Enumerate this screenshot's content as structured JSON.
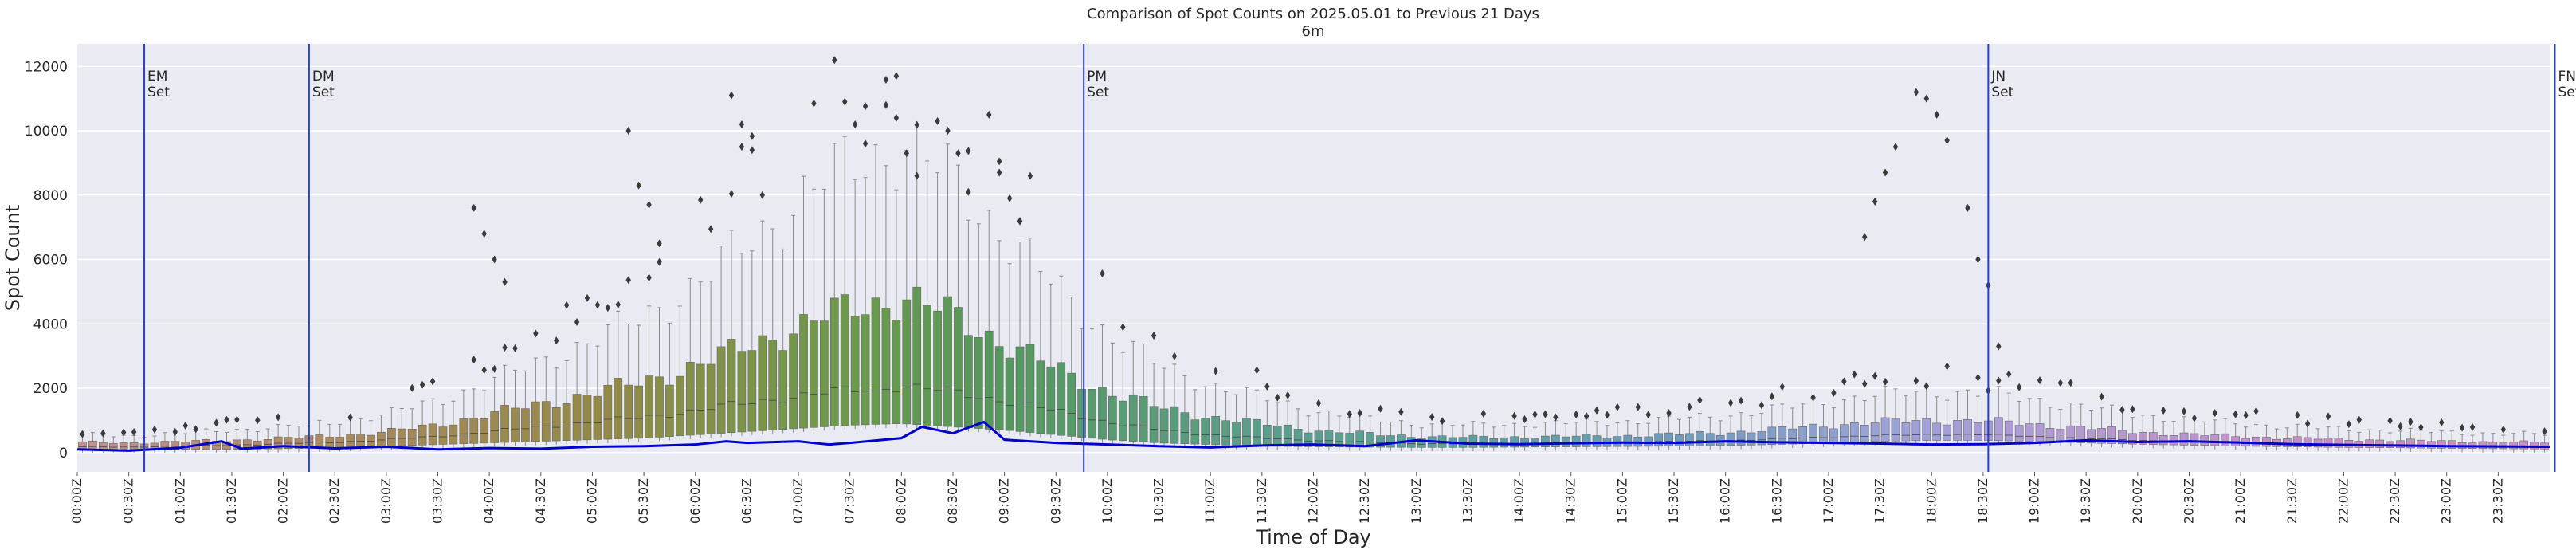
{
  "chart_data": {
    "type": "box",
    "title": "Comparison of Spot Counts on 2025.05.01 to Previous 21 Days",
    "subtitle": "6m",
    "xlabel": "Time of Day",
    "ylabel": "Spot Count",
    "ylim": [
      -600,
      12700
    ],
    "yticks": [
      0,
      2000,
      4000,
      6000,
      8000,
      10000,
      12000
    ],
    "grid": true,
    "xtick_labels": [
      "00:00Z",
      "00:30Z",
      "01:00Z",
      "01:30Z",
      "02:00Z",
      "02:30Z",
      "03:00Z",
      "03:30Z",
      "04:00Z",
      "04:30Z",
      "05:00Z",
      "05:30Z",
      "06:00Z",
      "06:30Z",
      "07:00Z",
      "07:30Z",
      "08:00Z",
      "08:30Z",
      "09:00Z",
      "09:30Z",
      "10:00Z",
      "10:30Z",
      "11:00Z",
      "11:30Z",
      "12:00Z",
      "12:30Z",
      "13:00Z",
      "13:30Z",
      "14:00Z",
      "14:30Z",
      "15:00Z",
      "15:30Z",
      "16:00Z",
      "16:30Z",
      "17:00Z",
      "17:30Z",
      "18:00Z",
      "18:30Z",
      "19:00Z",
      "19:30Z",
      "20:00Z",
      "20:30Z",
      "21:00Z",
      "21:30Z",
      "22:00Z",
      "22:30Z",
      "23:00Z",
      "23:30Z"
    ],
    "bins_per_day": 240,
    "median_profile": {
      "time_hours": [
        0,
        0.5,
        1,
        1.5,
        2,
        2.5,
        3,
        3.5,
        4,
        4.5,
        5,
        5.5,
        6,
        6.5,
        7,
        7.5,
        8,
        8.5,
        9,
        9.5,
        10,
        10.5,
        11,
        11.5,
        12,
        12.5,
        13,
        13.5,
        14,
        14.5,
        15,
        15.5,
        16,
        16.5,
        17,
        17.5,
        18,
        18.5,
        19,
        19.5,
        20,
        20.5,
        21,
        21.5,
        22,
        22.5,
        23,
        23.5,
        24
      ],
      "q1": [
        100,
        100,
        100,
        100,
        120,
        150,
        200,
        250,
        300,
        350,
        400,
        450,
        550,
        650,
        750,
        850,
        900,
        800,
        700,
        550,
        400,
        300,
        250,
        200,
        180,
        170,
        160,
        160,
        170,
        180,
        190,
        200,
        220,
        250,
        300,
        350,
        380,
        380,
        350,
        300,
        260,
        230,
        200,
        180,
        160,
        150,
        130,
        120,
        110
      ],
      "median": [
        180,
        170,
        200,
        230,
        280,
        320,
        400,
        500,
        650,
        800,
        950,
        1100,
        1300,
        1550,
        1750,
        1950,
        2050,
        1900,
        1600,
        1300,
        950,
        700,
        550,
        450,
        380,
        320,
        280,
        270,
        280,
        300,
        320,
        340,
        370,
        420,
        480,
        530,
        560,
        560,
        500,
        440,
        380,
        330,
        290,
        260,
        240,
        220,
        200,
        180,
        170
      ],
      "q3": [
        320,
        300,
        340,
        380,
        450,
        520,
        650,
        850,
        1200,
        1500,
        1850,
        2200,
        2700,
        3300,
        3900,
        4500,
        4800,
        4300,
        3400,
        2600,
        1900,
        1400,
        1100,
        900,
        700,
        580,
        500,
        470,
        480,
        500,
        520,
        560,
        620,
        720,
        850,
        950,
        1000,
        980,
        880,
        760,
        640,
        560,
        500,
        450,
        410,
        380,
        350,
        330,
        310
      ],
      "whisker_high": [
        550,
        520,
        600,
        700,
        800,
        950,
        1200,
        1600,
        2200,
        2800,
        3500,
        4200,
        5200,
        6500,
        7800,
        9000,
        9500,
        8500,
        6800,
        5100,
        3700,
        2700,
        2100,
        1700,
        1300,
        1050,
        900,
        850,
        880,
        920,
        960,
        1040,
        1150,
        1350,
        1600,
        1800,
        1900,
        1850,
        1650,
        1400,
        1180,
        1020,
        900,
        800,
        730,
        680,
        630,
        590,
        560
      ]
    },
    "series": [
      {
        "name": "2025.05.01",
        "color": "#0000cc",
        "time_hours": [
          0,
          0.5,
          1,
          1.4,
          1.6,
          2,
          2.5,
          3,
          3.5,
          4,
          4.5,
          5,
          5.5,
          6,
          6.3,
          6.5,
          7,
          7.3,
          7.5,
          8,
          8.2,
          8.5,
          8.8,
          9,
          9.5,
          10,
          10.5,
          11,
          11.5,
          12,
          12.5,
          13,
          13.5,
          14,
          14.5,
          15,
          15.5,
          16,
          16.5,
          17,
          17.5,
          18,
          18.5,
          19,
          19.5,
          20,
          20.5,
          21,
          21.5,
          22,
          22.5,
          23,
          23.5,
          24
        ],
        "values": [
          100,
          60,
          150,
          350,
          120,
          200,
          130,
          180,
          100,
          140,
          120,
          180,
          200,
          250,
          350,
          300,
          350,
          250,
          300,
          450,
          800,
          600,
          950,
          400,
          300,
          250,
          200,
          160,
          220,
          250,
          200,
          380,
          280,
          260,
          290,
          310,
          300,
          350,
          320,
          300,
          280,
          250,
          260,
          300,
          380,
          330,
          350,
          310,
          260,
          240,
          220,
          200,
          190,
          180
        ]
      }
    ],
    "events": [
      {
        "label": "EM\nSet",
        "time_hours": 0.65
      },
      {
        "label": "DM\nSet",
        "time_hours": 2.25
      },
      {
        "label": "PM\nSet",
        "time_hours": 9.77
      },
      {
        "label": "JN\nSet",
        "time_hours": 18.55
      },
      {
        "label": "FN\nSet",
        "time_hours": 24.05
      }
    ],
    "outlier_hotspots": [
      {
        "time_hours": 4.0,
        "values": [
          7600,
          6800,
          6000,
          5300
        ]
      },
      {
        "time_hours": 5.5,
        "values": [
          10000,
          8300,
          7700,
          6500
        ]
      },
      {
        "time_hours": 6.5,
        "values": [
          11100,
          10200,
          9400,
          8000
        ]
      },
      {
        "time_hours": 7.5,
        "values": [
          12200,
          10900,
          10200,
          9600
        ]
      },
      {
        "time_hours": 8.0,
        "values": [
          10800,
          10400,
          9300,
          8600
        ]
      },
      {
        "time_hours": 8.5,
        "values": [
          10300,
          10000,
          9300,
          8100
        ]
      },
      {
        "time_hours": 9.0,
        "values": [
          10500,
          8700,
          7900,
          7200
        ]
      },
      {
        "time_hours": 17.5,
        "values": [
          6700,
          7800,
          8700,
          9500
        ]
      },
      {
        "time_hours": 18.0,
        "values": [
          11200,
          11000,
          10500,
          9700
        ]
      },
      {
        "time_hours": 18.5,
        "values": [
          7600,
          6000,
          5200,
          3300
        ]
      }
    ]
  }
}
